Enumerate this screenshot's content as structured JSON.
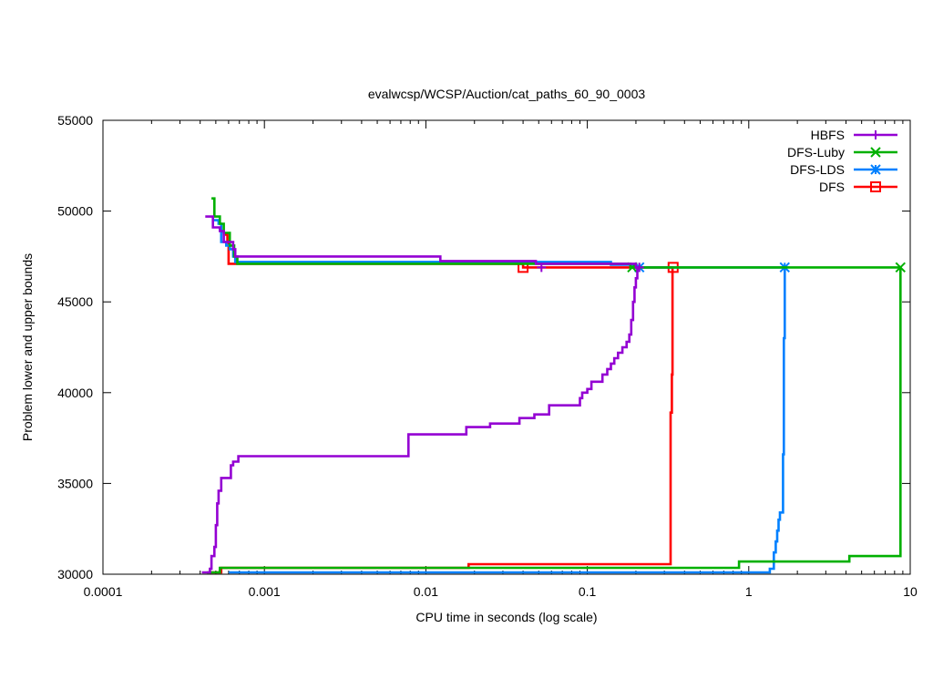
{
  "chart_data": {
    "type": "line",
    "title": "evalwcsp/WCSP/Auction/cat_paths_60_90_0003",
    "xlabel": "CPU time in seconds (log scale)",
    "ylabel": "Problem lower and upper bounds",
    "xscale": "log",
    "xlim": [
      0.0001,
      10
    ],
    "ylim": [
      30000,
      55000
    ],
    "x_ticks": [
      0.0001,
      0.001,
      0.01,
      0.1,
      1,
      10
    ],
    "x_tick_labels": [
      "0.0001",
      "0.001",
      "0.01",
      "0.1",
      "1",
      "10"
    ],
    "y_ticks": [
      30000,
      35000,
      40000,
      45000,
      50000,
      55000
    ],
    "y_tick_labels": [
      "30000",
      "35000",
      "40000",
      "45000",
      "50000",
      "55000"
    ],
    "grid": false,
    "legend_position": "top-right",
    "series": [
      {
        "name": "HBFS",
        "color": "#9400d3",
        "marker": "plus",
        "upper": [
          [
            0.00043,
            49700
          ],
          [
            0.00048,
            49700
          ],
          [
            0.00048,
            49100
          ],
          [
            0.00053,
            49100
          ],
          [
            0.00053,
            48900
          ],
          [
            0.00056,
            48900
          ],
          [
            0.00056,
            48300
          ],
          [
            0.00064,
            48300
          ],
          [
            0.00064,
            47900
          ],
          [
            0.00066,
            47900
          ],
          [
            0.00066,
            47500
          ],
          [
            0.0123,
            47500
          ],
          [
            0.0123,
            47250
          ],
          [
            0.048,
            47250
          ],
          [
            0.048,
            47100
          ],
          [
            0.2,
            47100
          ],
          [
            0.2,
            46900
          ],
          [
            0.21,
            46900
          ]
        ],
        "lower": [
          [
            0.00041,
            30100
          ],
          [
            0.00046,
            30100
          ],
          [
            0.00046,
            30300
          ],
          [
            0.00047,
            30300
          ],
          [
            0.00047,
            31000
          ],
          [
            0.00049,
            31000
          ],
          [
            0.00049,
            31500
          ],
          [
            0.0005,
            31500
          ],
          [
            0.0005,
            32700
          ],
          [
            0.00051,
            32700
          ],
          [
            0.00051,
            33900
          ],
          [
            0.00052,
            33900
          ],
          [
            0.00052,
            34600
          ],
          [
            0.00054,
            34600
          ],
          [
            0.00054,
            35300
          ],
          [
            0.00062,
            35300
          ],
          [
            0.00062,
            36000
          ],
          [
            0.00064,
            36000
          ],
          [
            0.00064,
            36200
          ],
          [
            0.00069,
            36200
          ],
          [
            0.00069,
            36500
          ],
          [
            0.0078,
            36500
          ],
          [
            0.0078,
            37700
          ],
          [
            0.0178,
            37700
          ],
          [
            0.0178,
            38100
          ],
          [
            0.025,
            38100
          ],
          [
            0.025,
            38300
          ],
          [
            0.038,
            38300
          ],
          [
            0.038,
            38600
          ],
          [
            0.047,
            38600
          ],
          [
            0.047,
            38800
          ],
          [
            0.058,
            38800
          ],
          [
            0.058,
            39300
          ],
          [
            0.09,
            39300
          ],
          [
            0.09,
            39700
          ],
          [
            0.093,
            39700
          ],
          [
            0.093,
            40000
          ],
          [
            0.1,
            40000
          ],
          [
            0.1,
            40200
          ],
          [
            0.106,
            40200
          ],
          [
            0.106,
            40600
          ],
          [
            0.124,
            40600
          ],
          [
            0.124,
            41000
          ],
          [
            0.133,
            41000
          ],
          [
            0.133,
            41300
          ],
          [
            0.14,
            41300
          ],
          [
            0.14,
            41600
          ],
          [
            0.147,
            41600
          ],
          [
            0.147,
            41900
          ],
          [
            0.155,
            41900
          ],
          [
            0.155,
            42200
          ],
          [
            0.165,
            42200
          ],
          [
            0.165,
            42500
          ],
          [
            0.175,
            42500
          ],
          [
            0.175,
            42800
          ],
          [
            0.182,
            42800
          ],
          [
            0.182,
            43200
          ],
          [
            0.187,
            43200
          ],
          [
            0.187,
            44000
          ],
          [
            0.192,
            44000
          ],
          [
            0.192,
            45000
          ],
          [
            0.196,
            45000
          ],
          [
            0.196,
            45800
          ],
          [
            0.2,
            45800
          ],
          [
            0.2,
            46300
          ],
          [
            0.204,
            46300
          ],
          [
            0.204,
            46900
          ],
          [
            0.21,
            46900
          ]
        ],
        "marker_points": [
          [
            0.052,
            46900
          ],
          [
            0.21,
            46900
          ]
        ]
      },
      {
        "name": "DFS-Luby",
        "color": "#00b000",
        "marker": "x",
        "upper": [
          [
            0.00047,
            50700
          ],
          [
            0.00049,
            50700
          ],
          [
            0.00049,
            49700
          ],
          [
            0.00053,
            49700
          ],
          [
            0.00053,
            49300
          ],
          [
            0.00056,
            49300
          ],
          [
            0.00056,
            48800
          ],
          [
            0.00061,
            48800
          ],
          [
            0.00061,
            48100
          ],
          [
            0.00065,
            48100
          ],
          [
            0.00065,
            47500
          ],
          [
            0.00068,
            47500
          ],
          [
            0.00068,
            47100
          ],
          [
            0.185,
            47100
          ],
          [
            0.185,
            46900
          ],
          [
            8.7,
            46900
          ],
          [
            8.7,
            31000
          ],
          [
            4.2,
            31000
          ],
          [
            4.2,
            30700
          ],
          [
            0.87,
            30700
          ],
          [
            0.87,
            30350
          ],
          [
            0.00053,
            30350
          ],
          [
            0.00053,
            30100
          ],
          [
            0.00044,
            30100
          ]
        ],
        "marker_points": [
          [
            0.19,
            46900
          ],
          [
            8.7,
            46900
          ]
        ]
      },
      {
        "name": "DFS-LDS",
        "color": "#0080ff",
        "marker": "star",
        "upper": [
          [
            0.00048,
            49500
          ],
          [
            0.00052,
            49500
          ],
          [
            0.00052,
            49300
          ],
          [
            0.00054,
            49300
          ],
          [
            0.00054,
            48300
          ],
          [
            0.00058,
            48300
          ],
          [
            0.00058,
            48100
          ],
          [
            0.00061,
            48100
          ],
          [
            0.00061,
            47900
          ],
          [
            0.00064,
            47900
          ],
          [
            0.00064,
            47500
          ],
          [
            0.00066,
            47500
          ],
          [
            0.00066,
            47200
          ],
          [
            0.14,
            47200
          ],
          [
            0.14,
            47050
          ],
          [
            0.2,
            47050
          ],
          [
            0.2,
            46900
          ],
          [
            1.67,
            46900
          ]
        ],
        "lower": [
          [
            0.0006,
            30100
          ],
          [
            1.35,
            30100
          ],
          [
            1.35,
            30300
          ],
          [
            1.43,
            30300
          ],
          [
            1.43,
            31200
          ],
          [
            1.47,
            31200
          ],
          [
            1.47,
            31800
          ],
          [
            1.5,
            31800
          ],
          [
            1.5,
            32400
          ],
          [
            1.53,
            32400
          ],
          [
            1.53,
            33000
          ],
          [
            1.56,
            33000
          ],
          [
            1.56,
            33400
          ],
          [
            1.63,
            33400
          ],
          [
            1.63,
            36600
          ],
          [
            1.65,
            36600
          ],
          [
            1.65,
            43000
          ],
          [
            1.67,
            43000
          ],
          [
            1.67,
            46900
          ]
        ],
        "marker_points": [
          [
            0.21,
            46900
          ],
          [
            1.67,
            46900
          ]
        ]
      },
      {
        "name": "DFS",
        "color": "#ff0000",
        "marker": "square",
        "upper": [
          [
            0.00057,
            48700
          ],
          [
            0.00059,
            48700
          ],
          [
            0.00059,
            48300
          ],
          [
            0.0006,
            48300
          ],
          [
            0.0006,
            47100
          ],
          [
            0.04,
            47100
          ],
          [
            0.04,
            46900
          ],
          [
            0.34,
            46900
          ]
        ],
        "lower": [
          [
            0.00046,
            30100
          ],
          [
            0.00054,
            30100
          ],
          [
            0.00054,
            30350
          ],
          [
            0.0184,
            30350
          ],
          [
            0.0184,
            30550
          ],
          [
            0.328,
            30550
          ],
          [
            0.328,
            38900
          ],
          [
            0.334,
            38900
          ],
          [
            0.334,
            41000
          ],
          [
            0.337,
            41000
          ],
          [
            0.337,
            46900
          ],
          [
            0.34,
            46900
          ]
        ],
        "marker_points": [
          [
            0.04,
            46900
          ],
          [
            0.34,
            46900
          ]
        ]
      }
    ]
  }
}
